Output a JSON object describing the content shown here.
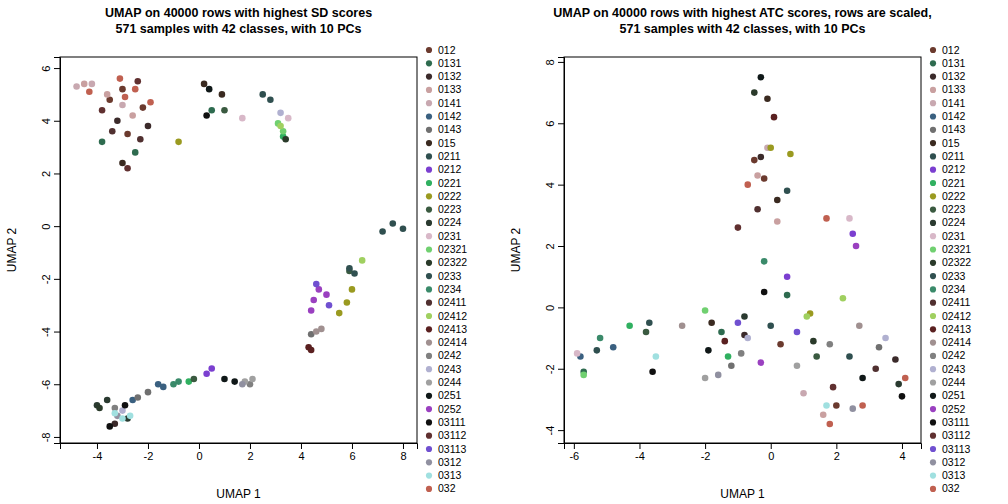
{
  "chart_data": [
    {
      "type": "scatter",
      "title": [
        "UMAP on 40000 rows with highest SD scores",
        "571 samples with 42 classes, with 10 PCs"
      ],
      "xlabel": "UMAP 1",
      "ylabel": "UMAP 2",
      "xlim": [
        -5.45,
        8.55
      ],
      "ylim": [
        -8.23,
        6.42
      ],
      "xticks": [
        -4,
        -2,
        0,
        2,
        4,
        6,
        8
      ],
      "yticks": [
        -8,
        -6,
        -4,
        -2,
        0,
        2,
        4,
        6
      ],
      "legend": "right",
      "marker": "circle",
      "series": [
        {
          "name": "012",
          "color": "#6b3a2e",
          "x": [
            -3.5,
            -2.8,
            -3.0,
            -2.2
          ],
          "y": [
            4.8,
            3.5,
            5.2,
            4.5
          ]
        },
        {
          "name": "0131",
          "color": "#2e6b4f",
          "x": [
            -3.8,
            -2.5,
            0.5
          ],
          "y": [
            3.2,
            2.8,
            4.4
          ]
        },
        {
          "name": "0132",
          "color": "#3b2a2a",
          "x": [
            -3.2,
            -2.0,
            -3.3
          ],
          "y": [
            4.0,
            3.8,
            -7.5
          ]
        },
        {
          "name": "0133",
          "color": "#c9a0a0",
          "x": [
            -4.5,
            -3.6,
            -2.6
          ],
          "y": [
            5.4,
            5.0,
            4.2
          ]
        },
        {
          "name": "0141",
          "color": "#c8a8b0",
          "x": [
            -4.8,
            -4.2,
            -3.0
          ],
          "y": [
            5.3,
            5.4,
            4.6
          ]
        },
        {
          "name": "0142",
          "color": "#3a6080",
          "x": [
            -1.6,
            -1.4,
            -2.6
          ],
          "y": [
            -6.0,
            -6.1,
            -6.6
          ]
        },
        {
          "name": "0143",
          "color": "#707070",
          "x": [
            -2.4,
            -2.0,
            4.4
          ],
          "y": [
            -6.5,
            -6.3,
            -4.1
          ]
        },
        {
          "name": "015",
          "color": "#3a2a20",
          "x": [
            0.2,
            0.9,
            -3.0
          ],
          "y": [
            5.4,
            5.0,
            2.4
          ]
        },
        {
          "name": "0211",
          "color": "#2f4f4f",
          "x": [
            7.2,
            7.6,
            8.0,
            2.5
          ],
          "y": [
            -0.2,
            0.1,
            -0.1,
            5.0
          ]
        },
        {
          "name": "0212",
          "color": "#7b3fd0",
          "x": [
            0.5,
            0.3
          ],
          "y": [
            -5.4,
            -5.6
          ]
        },
        {
          "name": "0221",
          "color": "#30b060",
          "x": [
            3.3,
            -0.4
          ],
          "y": [
            3.4,
            -5.9
          ]
        },
        {
          "name": "0222",
          "color": "#9a9a20",
          "x": [
            -0.8,
            5.8,
            6.0,
            5.5
          ],
          "y": [
            3.2,
            -2.9,
            -2.4,
            -3.3
          ]
        },
        {
          "name": "0223",
          "color": "#3a5a40",
          "x": [
            1.0,
            -0.2,
            5.9
          ],
          "y": [
            4.4,
            -5.8,
            -1.7
          ]
        },
        {
          "name": "0224",
          "color": "#2a3a30",
          "x": [
            -4.0,
            -3.6,
            -2.8
          ],
          "y": [
            -6.8,
            -6.6,
            -7.3
          ]
        },
        {
          "name": "0231",
          "color": "#d8b8c8",
          "x": [
            3.5,
            1.7
          ],
          "y": [
            4.1,
            4.1
          ]
        },
        {
          "name": "02321",
          "color": "#70d070",
          "x": [
            3.3,
            3.1
          ],
          "y": [
            3.6,
            3.9
          ]
        },
        {
          "name": "02322",
          "color": "#2a3a2a",
          "x": [
            -3.9,
            3.4
          ],
          "y": [
            -6.9,
            3.3
          ]
        },
        {
          "name": "0233",
          "color": "#305050",
          "x": [
            5.9,
            6.1,
            2.8
          ],
          "y": [
            -1.6,
            -1.8,
            4.8
          ]
        },
        {
          "name": "0234",
          "color": "#3a8a6a",
          "x": [
            -0.8,
            -1.0
          ],
          "y": [
            -5.9,
            -6.0
          ]
        },
        {
          "name": "02411",
          "color": "#503030",
          "x": [
            -3.4,
            -2.3
          ],
          "y": [
            3.6,
            3.3
          ]
        },
        {
          "name": "02412",
          "color": "#a0d060",
          "x": [
            6.4,
            3.2
          ],
          "y": [
            -1.3,
            3.8
          ]
        },
        {
          "name": "02413",
          "color": "#5a2020",
          "x": [
            4.3,
            4.4
          ],
          "y": [
            -4.6,
            -4.7
          ]
        },
        {
          "name": "02414",
          "color": "#a09090",
          "x": [
            4.6,
            4.8
          ],
          "y": [
            -4.0,
            -3.9
          ]
        },
        {
          "name": "0242",
          "color": "#808080",
          "x": [
            -3.3,
            2.0
          ],
          "y": [
            -6.9,
            -6.0
          ]
        },
        {
          "name": "0243",
          "color": "#b0b0d0",
          "x": [
            -3.0,
            3.2
          ],
          "y": [
            -7.0,
            4.3
          ]
        },
        {
          "name": "0244",
          "color": "#a0a0a0",
          "x": [
            1.8,
            2.1
          ],
          "y": [
            -5.9,
            -5.8
          ]
        },
        {
          "name": "0251",
          "color": "#101818",
          "x": [
            1.0,
            1.4,
            0.4
          ],
          "y": [
            -5.8,
            -5.9,
            5.2
          ]
        },
        {
          "name": "0252",
          "color": "#9a40c0",
          "x": [
            4.5,
            4.7,
            4.4,
            5.0
          ],
          "y": [
            -2.8,
            -2.4,
            -3.2,
            -2.6
          ]
        },
        {
          "name": "03111",
          "color": "#101010",
          "x": [
            -3.5,
            -2.9,
            0.3
          ],
          "y": [
            -7.6,
            -6.8,
            4.2
          ]
        },
        {
          "name": "03112",
          "color": "#603030",
          "x": [
            -3.8,
            -2.4,
            -2.8
          ],
          "y": [
            4.4,
            5.5,
            2.2
          ]
        },
        {
          "name": "03113",
          "color": "#7050d0",
          "x": [
            4.6,
            5.1
          ],
          "y": [
            -2.2,
            -3.0
          ]
        },
        {
          "name": "0312",
          "color": "#9090a0",
          "x": [
            -3.2,
            1.7
          ],
          "y": [
            -7.2,
            -6.0
          ]
        },
        {
          "name": "0313",
          "color": "#a0e0e0",
          "x": [
            -3.3,
            -3.0,
            -2.7
          ],
          "y": [
            -7.1,
            -7.3,
            -7.2
          ]
        },
        {
          "name": "032",
          "color": "#c06050",
          "x": [
            -3.1,
            -2.9,
            -1.9,
            -2.5,
            -4.3
          ],
          "y": [
            5.6,
            4.9,
            4.7,
            5.2,
            5.1
          ]
        }
      ]
    },
    {
      "type": "scatter",
      "title": [
        "UMAP on 40000 rows with highest ATC scores, rows are scaled,",
        "571 samples with 42 classes, with 10 PCs"
      ],
      "xlabel": "UMAP 1",
      "ylabel": "UMAP 2",
      "xlim": [
        -6.3,
        4.58
      ],
      "ylim": [
        -4.42,
        8.16
      ],
      "xticks": [
        -6,
        -4,
        -2,
        0,
        2,
        4
      ],
      "yticks": [
        -4,
        -2,
        0,
        2,
        4,
        6,
        8
      ],
      "legend": "right",
      "marker": "circle",
      "series": [
        {
          "name": "012",
          "color": "#6b3a2e",
          "x": [
            -0.5,
            -0.2,
            0.3,
            2.0
          ],
          "y": [
            4.8,
            4.2,
            -1.2,
            -3.2
          ]
        },
        {
          "name": "0131",
          "color": "#2e6b4f",
          "x": [
            -5.7,
            -1.5,
            0.5
          ],
          "y": [
            -2.1,
            -0.8,
            0.4
          ]
        },
        {
          "name": "0132",
          "color": "#3b2a2a",
          "x": [
            -0.3,
            -0.8,
            3.8
          ],
          "y": [
            4.9,
            -0.9,
            -1.7
          ]
        },
        {
          "name": "0133",
          "color": "#c9a0a0",
          "x": [
            -0.4,
            1.6,
            0.2
          ],
          "y": [
            4.3,
            -3.5,
            2.8
          ]
        },
        {
          "name": "0141",
          "color": "#c8a8b0",
          "x": [
            -0.1,
            1.0
          ],
          "y": [
            5.2,
            -2.8
          ]
        },
        {
          "name": "0142",
          "color": "#3a6080",
          "x": [
            -5.8,
            -4.8
          ],
          "y": [
            -1.6,
            -1.3
          ]
        },
        {
          "name": "0143",
          "color": "#707070",
          "x": [
            -1.2,
            3.3
          ],
          "y": [
            -1.9,
            -1.3
          ]
        },
        {
          "name": "015",
          "color": "#3a2a20",
          "x": [
            -0.1,
            0.2,
            -1.8
          ],
          "y": [
            6.8,
            3.5,
            -0.5
          ]
        },
        {
          "name": "0211",
          "color": "#2f4f4f",
          "x": [
            -5.3,
            0.0,
            2.4
          ],
          "y": [
            -1.4,
            -0.6,
            -1.6
          ]
        },
        {
          "name": "0212",
          "color": "#7b3fd0",
          "x": [
            0.5,
            2.5
          ],
          "y": [
            1.0,
            2.4
          ]
        },
        {
          "name": "0221",
          "color": "#30b060",
          "x": [
            -4.3,
            -1.3
          ],
          "y": [
            -0.6,
            -1.6
          ]
        },
        {
          "name": "0222",
          "color": "#9a9a20",
          "x": [
            0.0,
            0.6,
            1.2
          ],
          "y": [
            5.2,
            5.0,
            -0.2
          ]
        },
        {
          "name": "0223",
          "color": "#3a5a40",
          "x": [
            -3.8,
            1.4
          ],
          "y": [
            -0.8,
            -1.6
          ]
        },
        {
          "name": "0224",
          "color": "#2a3a30",
          "x": [
            -0.8,
            3.9
          ],
          "y": [
            -0.3,
            -2.5
          ]
        },
        {
          "name": "0231",
          "color": "#d8b8c8",
          "x": [
            -5.9,
            2.4
          ],
          "y": [
            -1.5,
            2.9
          ]
        },
        {
          "name": "02321",
          "color": "#70d070",
          "x": [
            -5.7,
            -2.0
          ],
          "y": [
            -2.2,
            -0.1
          ]
        },
        {
          "name": "02322",
          "color": "#2a3a2a",
          "x": [
            -0.5,
            1.3
          ],
          "y": [
            7.0,
            -1.1
          ]
        },
        {
          "name": "0233",
          "color": "#305050",
          "x": [
            -3.7,
            0.5
          ],
          "y": [
            -0.5,
            3.8
          ]
        },
        {
          "name": "0234",
          "color": "#3a8a6a",
          "x": [
            -5.2,
            -0.2
          ],
          "y": [
            -1.0,
            1.5
          ]
        },
        {
          "name": "02411",
          "color": "#503030",
          "x": [
            -0.4,
            3.2
          ],
          "y": [
            3.2,
            -2.0
          ]
        },
        {
          "name": "02412",
          "color": "#a0d060",
          "x": [
            1.1,
            2.2
          ],
          "y": [
            -0.3,
            0.3
          ]
        },
        {
          "name": "02413",
          "color": "#5a2020",
          "x": [
            0.1,
            -1.4
          ],
          "y": [
            6.2,
            -1.1
          ]
        },
        {
          "name": "02414",
          "color": "#a09090",
          "x": [
            -2.7,
            2.7
          ],
          "y": [
            -0.6,
            -0.6
          ]
        },
        {
          "name": "0242",
          "color": "#808080",
          "x": [
            -0.9,
            1.8
          ],
          "y": [
            -1.5,
            -1.2
          ]
        },
        {
          "name": "0243",
          "color": "#b0b0d0",
          "x": [
            -0.7,
            3.5
          ],
          "y": [
            -1.0,
            -1.0
          ]
        },
        {
          "name": "0244",
          "color": "#a0a0a0",
          "x": [
            -2.0,
            0.8
          ],
          "y": [
            -2.3,
            -1.9
          ]
        },
        {
          "name": "0251",
          "color": "#101818",
          "x": [
            -0.3,
            -1.9,
            2.8
          ],
          "y": [
            7.5,
            -1.4,
            -2.3
          ]
        },
        {
          "name": "0252",
          "color": "#9a40c0",
          "x": [
            2.6,
            -0.3
          ],
          "y": [
            2.0,
            -1.8
          ]
        },
        {
          "name": "03111",
          "color": "#101010",
          "x": [
            -0.2,
            -3.6,
            4.0
          ],
          "y": [
            0.5,
            -2.1,
            -2.9
          ]
        },
        {
          "name": "03112",
          "color": "#603030",
          "x": [
            -1.0,
            1.9
          ],
          "y": [
            2.6,
            -2.6
          ]
        },
        {
          "name": "03113",
          "color": "#7050d0",
          "x": [
            0.8,
            -1.0
          ],
          "y": [
            -0.8,
            -0.5
          ]
        },
        {
          "name": "0312",
          "color": "#9090a0",
          "x": [
            -1.6,
            2.5
          ],
          "y": [
            -2.2,
            -3.3
          ]
        },
        {
          "name": "0313",
          "color": "#a0e0e0",
          "x": [
            -3.5,
            1.7
          ],
          "y": [
            -1.6,
            -3.2
          ]
        },
        {
          "name": "032",
          "color": "#c06050",
          "x": [
            1.8,
            2.8,
            4.1,
            -0.7,
            1.7
          ],
          "y": [
            -3.8,
            -3.2,
            -2.3,
            4.0,
            2.9
          ]
        }
      ]
    }
  ]
}
